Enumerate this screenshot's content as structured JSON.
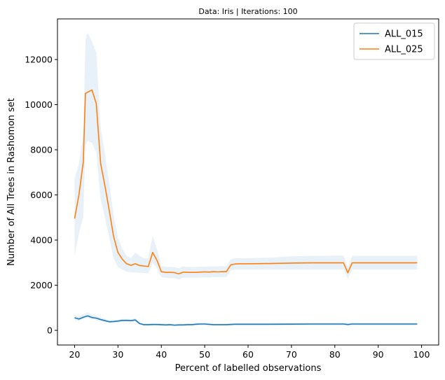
{
  "chart_data": {
    "type": "line",
    "title": "Data: Iris | Iterations: 100",
    "xlabel": "Percent of labelled observations",
    "ylabel": "Number of All Trees in Rashomon set",
    "xlim": [
      16.05,
      103.95
    ],
    "ylim": [
      -650,
      13800
    ],
    "xticks": [
      20,
      30,
      40,
      50,
      60,
      70,
      80,
      90,
      100
    ],
    "yticks": [
      0,
      2000,
      4000,
      6000,
      8000,
      10000,
      12000
    ],
    "grid": false,
    "legend_position": "top-right",
    "band_color": "#1f77b4",
    "series": [
      {
        "name": "ALL_015",
        "color": "#1f77b4",
        "x": [
          20,
          21,
          22,
          23,
          24,
          25,
          26,
          27,
          28,
          29,
          30,
          31,
          32,
          33,
          34,
          35,
          36,
          37,
          38,
          39,
          40,
          41,
          42,
          43,
          44,
          45,
          46,
          47,
          48,
          49,
          50,
          52,
          55,
          57,
          60,
          65,
          70,
          75,
          80,
          82,
          83,
          84,
          86,
          90,
          95,
          99
        ],
        "y": [
          560,
          500,
          580,
          640,
          570,
          540,
          480,
          430,
          380,
          390,
          410,
          440,
          440,
          430,
          460,
          300,
          250,
          250,
          260,
          260,
          250,
          240,
          250,
          230,
          240,
          240,
          250,
          250,
          270,
          280,
          280,
          250,
          250,
          270,
          270,
          270,
          275,
          280,
          280,
          280,
          260,
          280,
          280,
          280,
          280,
          280
        ],
        "lower": [
          450,
          420,
          500,
          550,
          480,
          450,
          400,
          360,
          320,
          320,
          340,
          360,
          370,
          360,
          370,
          240,
          200,
          200,
          200,
          200,
          190,
          190,
          190,
          180,
          190,
          190,
          200,
          200,
          210,
          220,
          220,
          200,
          200,
          210,
          210,
          210,
          210,
          220,
          220,
          220,
          200,
          220,
          220,
          220,
          220,
          220
        ],
        "upper": [
          700,
          620,
          720,
          800,
          700,
          650,
          580,
          520,
          460,
          460,
          480,
          510,
          520,
          500,
          540,
          370,
          310,
          310,
          320,
          320,
          310,
          300,
          310,
          290,
          300,
          300,
          310,
          310,
          330,
          340,
          340,
          300,
          300,
          330,
          330,
          330,
          335,
          340,
          340,
          340,
          320,
          340,
          340,
          340,
          340,
          340
        ]
      },
      {
        "name": "ALL_025",
        "color": "#ff7f0e",
        "x": [
          20,
          21,
          22,
          22.5,
          23,
          24,
          25,
          26,
          27,
          28,
          29,
          30,
          31,
          32,
          33,
          34,
          35,
          36,
          37,
          38,
          39,
          40,
          41,
          42,
          43,
          44,
          45,
          46,
          47,
          48,
          49,
          50,
          51,
          52,
          53,
          54,
          55,
          56,
          57,
          58,
          60,
          65,
          70,
          75,
          80,
          82,
          83,
          84,
          86,
          90,
          95,
          99
        ],
        "y": [
          4950,
          6000,
          7450,
          10500,
          10550,
          10650,
          10050,
          7400,
          6400,
          5300,
          4150,
          3450,
          3150,
          2950,
          2880,
          2950,
          2870,
          2850,
          2830,
          3450,
          3100,
          2600,
          2570,
          2570,
          2560,
          2500,
          2580,
          2570,
          2570,
          2570,
          2580,
          2590,
          2580,
          2600,
          2590,
          2600,
          2600,
          2900,
          2940,
          2950,
          2950,
          2960,
          2980,
          2990,
          2990,
          2990,
          2550,
          2990,
          2990,
          2990,
          2990,
          2990
        ],
        "lower": [
          3300,
          4300,
          5000,
          8200,
          8400,
          8300,
          7900,
          5800,
          5000,
          4100,
          3200,
          2800,
          2700,
          2600,
          2580,
          2560,
          2550,
          2540,
          2520,
          3000,
          2750,
          2350,
          2330,
          2320,
          2310,
          2250,
          2330,
          2330,
          2330,
          2330,
          2340,
          2350,
          2340,
          2360,
          2350,
          2360,
          2360,
          2650,
          2690,
          2700,
          2700,
          2700,
          2700,
          2700,
          2700,
          2700,
          2300,
          2700,
          2700,
          2700,
          2700,
          2700
        ],
        "upper": [
          6700,
          7400,
          8700,
          12900,
          13200,
          12800,
          12300,
          9000,
          7800,
          6500,
          5100,
          4100,
          3600,
          3300,
          3200,
          3450,
          3300,
          3200,
          3200,
          4200,
          3600,
          2850,
          2810,
          2810,
          2800,
          2750,
          2830,
          2810,
          2810,
          2810,
          2820,
          2830,
          2820,
          2840,
          2830,
          2840,
          2840,
          3150,
          3190,
          3200,
          3200,
          3220,
          3280,
          3300,
          3310,
          3310,
          2800,
          3300,
          3300,
          3300,
          3300,
          3300
        ]
      }
    ]
  }
}
